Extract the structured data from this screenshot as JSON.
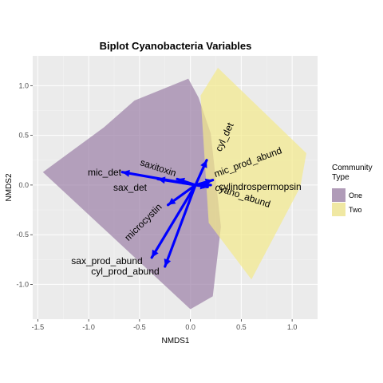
{
  "chart_data": {
    "type": "scatter",
    "title": "Biplot Cyanobacteria Variables",
    "xlabel": "NMDS1",
    "ylabel": "NMDS2",
    "xlim": [
      -1.55,
      1.25
    ],
    "ylim": [
      -1.35,
      1.3
    ],
    "x_ticks": [
      -1.5,
      -1.0,
      -0.5,
      0.0,
      0.5,
      1.0
    ],
    "x_tick_labels": [
      "-1.5",
      "-1.0",
      "-0.5",
      "0.0",
      "0.5",
      "1.0"
    ],
    "y_ticks": [
      -1.0,
      -0.5,
      0.0,
      0.5,
      1.0
    ],
    "y_tick_labels": [
      "-1.0",
      "-0.5",
      "0.0",
      "0.5",
      "1.0"
    ],
    "grid": true,
    "legend": {
      "title_lines": [
        "Community",
        "Type"
      ],
      "placement": "right",
      "entries": [
        {
          "label": "One",
          "color": "#b09bb8"
        },
        {
          "label": "Two",
          "color": "#f0e8a3"
        }
      ]
    },
    "hulls": [
      {
        "name": "One",
        "color": "#9b7fa6",
        "opacity": 0.7,
        "points": [
          [
            -0.02,
            1.07
          ],
          [
            0.08,
            0.88
          ],
          [
            0.2,
            0.52
          ],
          [
            0.3,
            -0.42
          ],
          [
            0.22,
            -1.12
          ],
          [
            0.0,
            -1.25
          ],
          [
            -1.45,
            0.13
          ],
          [
            -0.85,
            0.58
          ],
          [
            -0.55,
            0.85
          ]
        ]
      },
      {
        "name": "Two",
        "color": "#f3e98a",
        "opacity": 0.7,
        "points": [
          [
            0.27,
            1.18
          ],
          [
            1.14,
            0.32
          ],
          [
            1.08,
            -0.02
          ],
          [
            0.6,
            -0.95
          ],
          [
            0.18,
            -0.38
          ],
          [
            0.1,
            0.9
          ]
        ]
      }
    ],
    "vectors": [
      {
        "name": "cyl_det",
        "x": 0.16,
        "y": 0.25
      },
      {
        "name": "mic_prod_abund",
        "x": 0.22,
        "y": 0.05
      },
      {
        "name": "cylindrospermopsin",
        "x": 0.2,
        "y": 0.0
      },
      {
        "name": "cyano_abund",
        "x": 0.17,
        "y": -0.02
      },
      {
        "name": "saxitoxin",
        "x": -0.13,
        "y": 0.06
      },
      {
        "name": "mic_det",
        "x": -0.67,
        "y": 0.13
      },
      {
        "name": "sax_det",
        "x": -0.32,
        "y": 0.06
      },
      {
        "name": "microcystin",
        "x": -0.22,
        "y": -0.2
      },
      {
        "name": "sax_prod_abund",
        "x": -0.38,
        "y": -0.73
      },
      {
        "name": "cyl_prod_abund",
        "x": -0.25,
        "y": -0.82
      }
    ],
    "vector_color": "#0000ff",
    "vector_origin": [
      0.05,
      0.0
    ]
  }
}
